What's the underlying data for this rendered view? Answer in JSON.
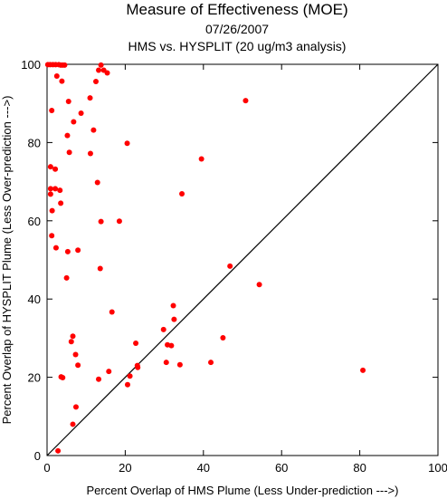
{
  "chart_data": {
    "type": "scatter",
    "title": "Measure of Effectiveness (MOE)",
    "subtitle_lines": [
      "07/26/2007",
      "HMS vs. HYSPLIT  (20 ug/m3 analysis)"
    ],
    "xlabel": "Percent Overlap of HMS Plume (Less Under-prediction --->)",
    "ylabel": "Percent Overlap of HYSPLIT Plume (Less Over-prediction --->)",
    "xlim": [
      0,
      100
    ],
    "ylim": [
      0,
      100
    ],
    "xticks": [
      0,
      20,
      40,
      60,
      80,
      100
    ],
    "yticks": [
      0,
      20,
      40,
      60,
      80,
      100
    ],
    "grid": false,
    "reference_line": "y = x",
    "point_color": "#ff0000",
    "points": [
      [
        0.2,
        99.9
      ],
      [
        0.8,
        99.9
      ],
      [
        1.5,
        99.9
      ],
      [
        2.2,
        99.9
      ],
      [
        3.0,
        99.9
      ],
      [
        3.5,
        99.8
      ],
      [
        4.0,
        99.8
      ],
      [
        4.5,
        99.8
      ],
      [
        13.8,
        99.8
      ],
      [
        13.2,
        98.5
      ],
      [
        14.5,
        98.5
      ],
      [
        15.4,
        97.8
      ],
      [
        2.5,
        97
      ],
      [
        3.8,
        95.7
      ],
      [
        12.5,
        95.6
      ],
      [
        11.0,
        91.4
      ],
      [
        50.8,
        90.7
      ],
      [
        5.5,
        90.5
      ],
      [
        1.2,
        88.2
      ],
      [
        8.7,
        87.5
      ],
      [
        6.8,
        85.3
      ],
      [
        11.9,
        83.2
      ],
      [
        5.2,
        81.8
      ],
      [
        20.5,
        79.8
      ],
      [
        5.7,
        77.5
      ],
      [
        11.1,
        77.2
      ],
      [
        39.5,
        75.8
      ],
      [
        0.9,
        73.8
      ],
      [
        2.1,
        73.2
      ],
      [
        12.9,
        69.8
      ],
      [
        0.9,
        68.2
      ],
      [
        2.1,
        68.2
      ],
      [
        3.3,
        67.8
      ],
      [
        0.9,
        66.8
      ],
      [
        34.5,
        66.9
      ],
      [
        3.5,
        64.5
      ],
      [
        1.3,
        62.6
      ],
      [
        13.8,
        59.8
      ],
      [
        18.5,
        59.9
      ],
      [
        1.2,
        56.2
      ],
      [
        2.3,
        53.1
      ],
      [
        7.9,
        52.5
      ],
      [
        5.3,
        52.1
      ],
      [
        46.8,
        48.4
      ],
      [
        13.6,
        47.8
      ],
      [
        5.0,
        45.4
      ],
      [
        54.3,
        43.7
      ],
      [
        32.3,
        38.3
      ],
      [
        16.6,
        36.7
      ],
      [
        32.5,
        34.8
      ],
      [
        29.8,
        32.2
      ],
      [
        6.6,
        30.5
      ],
      [
        45,
        30.1
      ],
      [
        6.2,
        29.1
      ],
      [
        22.7,
        28.7
      ],
      [
        30.8,
        28.3
      ],
      [
        31.8,
        28.1
      ],
      [
        7.3,
        25.8
      ],
      [
        41.9,
        23.8
      ],
      [
        30.5,
        23.8
      ],
      [
        7.9,
        23.1
      ],
      [
        23.1,
        23
      ],
      [
        34.0,
        23.2
      ],
      [
        23.2,
        22.5
      ],
      [
        15.8,
        21.5
      ],
      [
        21.2,
        20.3
      ],
      [
        3.6,
        20.1
      ],
      [
        4.0,
        19.9
      ],
      [
        13.2,
        19.5
      ],
      [
        20.6,
        18.1
      ],
      [
        7.4,
        12.4
      ],
      [
        6.6,
        8.0
      ],
      [
        2.8,
        1.2
      ],
      [
        80.8,
        21.8
      ]
    ]
  }
}
